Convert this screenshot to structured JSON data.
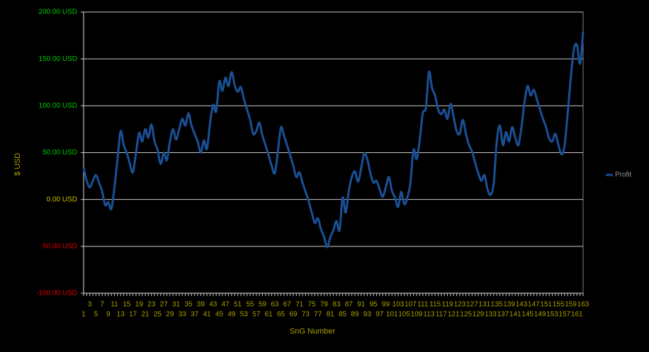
{
  "chart_data": {
    "type": "line",
    "x_label": "SnG Number",
    "y_label": "$ USD",
    "categories": [
      1,
      null,
      3,
      null,
      5,
      null,
      7,
      null,
      9,
      null,
      11,
      null,
      13,
      null,
      15,
      null,
      17,
      null,
      19,
      null,
      21,
      null,
      23,
      null,
      25,
      null,
      27,
      null,
      29,
      null,
      31,
      null,
      33,
      null,
      35,
      null,
      37,
      null,
      39,
      null,
      41,
      null,
      43,
      null,
      45,
      null,
      47,
      null,
      49,
      null,
      51,
      null,
      53,
      null,
      55,
      null,
      57,
      null,
      59,
      null,
      61,
      null,
      63,
      null,
      65,
      null,
      67,
      null,
      69,
      null,
      71,
      null,
      73,
      null,
      75,
      null,
      77,
      null,
      79,
      null,
      81,
      null,
      83,
      null,
      85,
      null,
      87,
      null,
      89,
      null,
      91,
      null,
      93,
      null,
      95,
      null,
      97,
      null,
      99,
      null,
      101,
      null,
      103,
      null,
      105,
      null,
      107,
      null,
      109,
      null,
      111,
      null,
      113,
      null,
      115,
      null,
      117,
      null,
      119,
      null,
      121,
      null,
      123,
      null,
      125,
      null,
      127,
      null,
      129,
      null,
      131,
      null,
      133,
      null,
      135,
      null,
      137,
      null,
      139,
      null,
      141,
      null,
      143,
      null,
      145,
      null,
      147,
      null,
      149,
      null,
      151,
      null,
      153,
      null,
      155,
      null,
      157,
      null,
      159,
      null,
      161,
      null,
      163
    ],
    "series": [
      {
        "name": "Profit",
        "color": "#1a5096",
        "values": [
          34,
          20,
          13,
          20,
          26,
          18,
          9,
          -6,
          -3,
          -10,
          13,
          43,
          73,
          58,
          50,
          38,
          29,
          50,
          71,
          62,
          75,
          66,
          80,
          62,
          53,
          38,
          50,
          42,
          62,
          75,
          64,
          75,
          86,
          79,
          92,
          79,
          70,
          62,
          50,
          63,
          54,
          81,
          101,
          94,
          126,
          116,
          130,
          121,
          136,
          122,
          115,
          120,
          107,
          96,
          85,
          70,
          73,
          82,
          68,
          58,
          47,
          36,
          28,
          51,
          77,
          68,
          58,
          47,
          36,
          24,
          29,
          18,
          8,
          -2,
          -14,
          -25,
          -20,
          -32,
          -40,
          -51,
          -40,
          -33,
          -23,
          -33,
          2,
          -14,
          9,
          24,
          30,
          19,
          33,
          49,
          43,
          28,
          18,
          20,
          11,
          3,
          13,
          24,
          9,
          2,
          -8,
          8,
          -5,
          2,
          18,
          53,
          43,
          63,
          92,
          98,
          136,
          119,
          111,
          96,
          91,
          96,
          86,
          102,
          88,
          73,
          70,
          85,
          70,
          58,
          51,
          39,
          28,
          20,
          26,
          11,
          5,
          17,
          62,
          79,
          58,
          72,
          62,
          77,
          66,
          58,
          77,
          104,
          121,
          111,
          117,
          107,
          96,
          86,
          77,
          65,
          62,
          70,
          58,
          48,
          58,
          92,
          130,
          160,
          165,
          145,
          179
        ]
      }
    ],
    "ylim": [
      -100,
      200
    ],
    "yticks": [
      {
        "value": -100,
        "label": "-100.00 USD"
      },
      {
        "value": -50,
        "label": "-50.00 USD"
      },
      {
        "value": 0,
        "label": "0.00 USD"
      },
      {
        "value": 50,
        "label": "50.00 USD"
      },
      {
        "value": 100,
        "label": "100.00 USD"
      },
      {
        "value": 150,
        "label": "150.00 USD"
      },
      {
        "value": 200,
        "label": "200.00 USD"
      }
    ],
    "grid": true,
    "legend": "right"
  }
}
